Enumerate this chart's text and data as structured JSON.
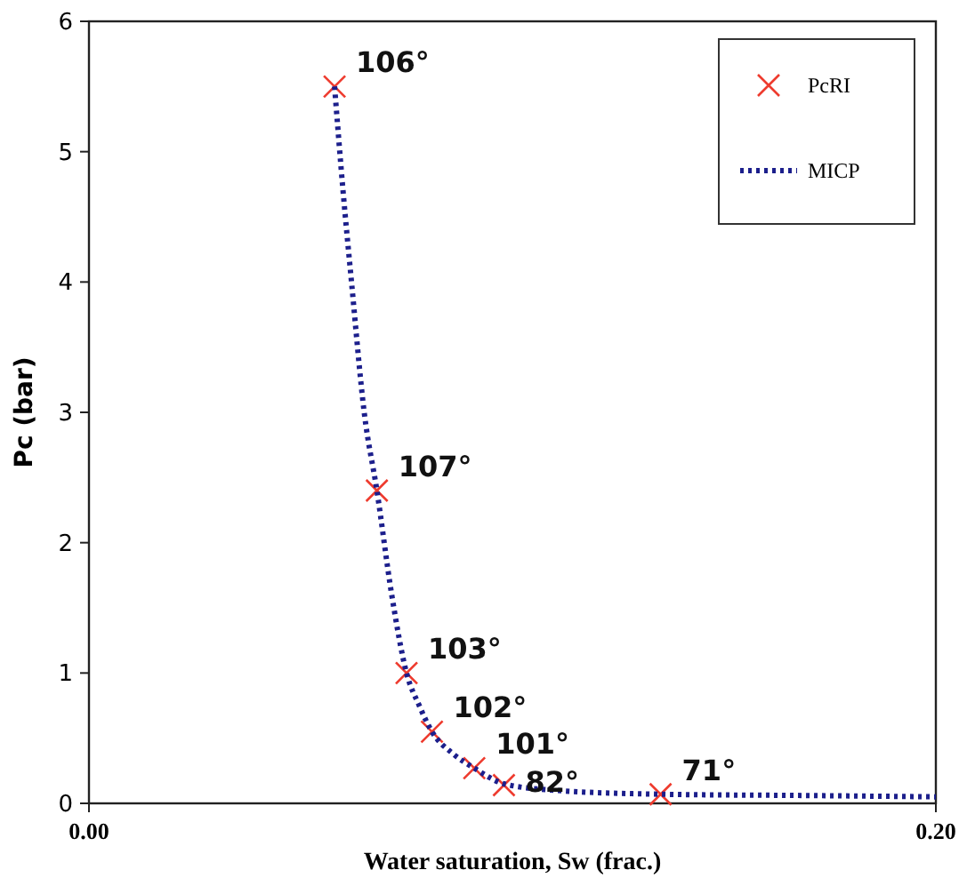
{
  "chart_data": {
    "type": "scatter",
    "xlabel": "Water saturation, Sw (frac.)",
    "ylabel": "Pc (bar)",
    "xlim": [
      0,
      0.2
    ],
    "xticks": [
      {
        "value": 0,
        "label": "0.00"
      },
      {
        "value": 0.2,
        "label": "0.20"
      }
    ],
    "ylim": [
      0,
      6
    ],
    "yticks": [
      0,
      1,
      2,
      3,
      4,
      5,
      6
    ],
    "grid": false,
    "legend": "top right",
    "series": [
      {
        "name": "PcRI",
        "marker": "cross",
        "color": "#ee3b2e",
        "x": [
          0.058,
          0.068,
          0.075,
          0.081,
          0.091,
          0.098,
          0.135
        ],
        "values": [
          5.5,
          2.4,
          1.0,
          0.55,
          0.27,
          0.14,
          0.07
        ]
      },
      {
        "name": "MICP",
        "type": "line",
        "marker": "none",
        "line_style": "dotted",
        "color": "#1c1f8c",
        "x": [
          0.058,
          0.06,
          0.062,
          0.065,
          0.068,
          0.0715,
          0.075,
          0.078,
          0.081,
          0.086,
          0.091,
          0.098,
          0.11,
          0.135,
          0.17,
          0.2
        ],
        "values": [
          5.5,
          4.7,
          4.0,
          3.0,
          2.4,
          1.6,
          1.0,
          0.75,
          0.55,
          0.38,
          0.27,
          0.15,
          0.1,
          0.07,
          0.06,
          0.05
        ]
      }
    ],
    "annotations": [
      {
        "text": "106°",
        "x": 0.058,
        "y": 5.5
      },
      {
        "text": "107°",
        "x": 0.068,
        "y": 2.4
      },
      {
        "text": "103°",
        "x": 0.075,
        "y": 1.0
      },
      {
        "text": "102°",
        "x": 0.081,
        "y": 0.55
      },
      {
        "text": "101°",
        "x": 0.091,
        "y": 0.27
      },
      {
        "text": "82°",
        "x": 0.098,
        "y": 0.14
      },
      {
        "text": "71°",
        "x": 0.135,
        "y": 0.07
      }
    ]
  }
}
